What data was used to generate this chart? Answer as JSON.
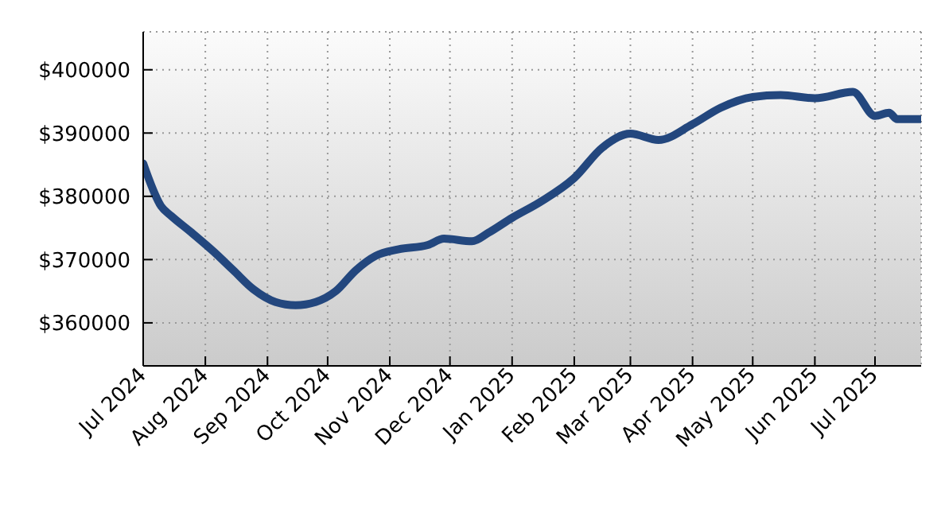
{
  "chart_data": {
    "type": "line",
    "x": [
      "2024-07-01",
      "2024-07-10",
      "2024-07-15",
      "2024-07-25",
      "2024-08-05",
      "2024-08-15",
      "2024-08-25",
      "2024-09-05",
      "2024-09-15",
      "2024-09-25",
      "2024-10-05",
      "2024-10-15",
      "2024-10-25",
      "2024-11-05",
      "2024-11-20",
      "2024-11-28",
      "2024-12-12",
      "2024-12-20",
      "2025-01-01",
      "2025-01-15",
      "2025-02-01",
      "2025-02-15",
      "2025-03-01",
      "2025-03-15",
      "2025-04-01",
      "2025-04-15",
      "2025-05-01",
      "2025-05-15",
      "2025-06-01",
      "2025-06-20",
      "2025-07-01",
      "2025-07-08",
      "2025-07-12",
      "2025-07-24"
    ],
    "series": [
      {
        "color": "#23477e",
        "values": [
          385200,
          378400,
          376900,
          374300,
          371300,
          368300,
          365300,
          363300,
          362800,
          363300,
          365000,
          368300,
          370600,
          371600,
          372300,
          373300,
          372900,
          374200,
          376600,
          379100,
          382900,
          387700,
          389900,
          388900,
          391400,
          394000,
          395700,
          396000,
          395500,
          396500,
          392700,
          393200,
          392200,
          392200
        ]
      }
    ],
    "xlim": [
      "2024-07-01",
      "2025-07-24"
    ],
    "xticks": [
      {
        "value": "2024-07-01",
        "label": "Jul 2024"
      },
      {
        "value": "2024-08-01",
        "label": "Aug 2024"
      },
      {
        "value": "2024-09-01",
        "label": "Sep 2024"
      },
      {
        "value": "2024-10-01",
        "label": "Oct 2024"
      },
      {
        "value": "2024-11-01",
        "label": "Nov 2024"
      },
      {
        "value": "2024-12-01",
        "label": "Dec 2024"
      },
      {
        "value": "2025-01-01",
        "label": "Jan 2025"
      },
      {
        "value": "2025-02-01",
        "label": "Feb 2025"
      },
      {
        "value": "2025-03-01",
        "label": "Mar 2025"
      },
      {
        "value": "2025-04-01",
        "label": "Apr 2025"
      },
      {
        "value": "2025-05-01",
        "label": "May 2025"
      },
      {
        "value": "2025-06-01",
        "label": "Jun 2025"
      },
      {
        "value": "2025-07-01",
        "label": "Jul 2025"
      }
    ],
    "ylim": [
      353200,
      406000
    ],
    "yticks": [
      {
        "value": 360000,
        "label": "$360000"
      },
      {
        "value": 370000,
        "label": "$370000"
      },
      {
        "value": 380000,
        "label": "$380000"
      },
      {
        "value": 390000,
        "label": "$390000"
      },
      {
        "value": 400000,
        "label": "$400000"
      }
    ],
    "grid": true,
    "marker": "none",
    "line_style": "solid"
  }
}
